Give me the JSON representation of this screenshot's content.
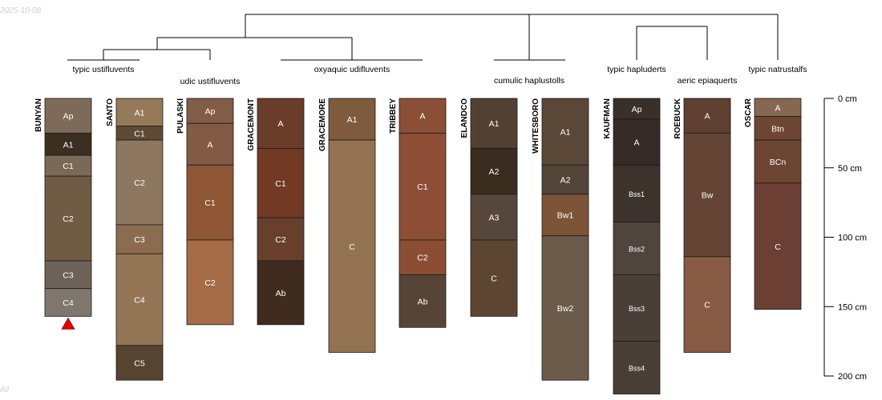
{
  "date_stamp": "2025-10-08",
  "footer_stamp": "All",
  "colors": {
    "line": "#000000",
    "horizon_text": "#ffffff",
    "marker": "#e00000"
  },
  "depth_axis": {
    "max_cm": 200,
    "ticks": [
      {
        "depth": 0,
        "label": "0 cm"
      },
      {
        "depth": 50,
        "label": "50 cm"
      },
      {
        "depth": 100,
        "label": "100 cm"
      },
      {
        "depth": 150,
        "label": "150 cm"
      },
      {
        "depth": 200,
        "label": "200 cm"
      }
    ]
  },
  "groups": [
    {
      "label": "typic ustifluvents",
      "members": [
        "BUNYAN",
        "SANTO"
      ]
    },
    {
      "label": "udic ustifluvents",
      "members": [
        "PULASKI"
      ]
    },
    {
      "label": "oxyaquic udifluvents",
      "members": [
        "GRACEMONT",
        "GRACEMORE",
        "TRIBBEY"
      ]
    },
    {
      "label": "cumulic haplustolls",
      "members": [
        "ELANDCO",
        "WHITESBORO"
      ]
    },
    {
      "label": "typic hapluderts",
      "members": [
        "KAUFMAN"
      ]
    },
    {
      "label": "aeric epiaquerts",
      "members": [
        "ROEBUCK"
      ]
    },
    {
      "label": "typic natrustalfs",
      "members": [
        "OSCAR"
      ]
    }
  ],
  "profiles": [
    {
      "name": "BUNYAN",
      "marker": true,
      "horizons": [
        {
          "name": "Ap",
          "top": 0,
          "bottom": 25,
          "color": "#7d6a58"
        },
        {
          "name": "A1",
          "top": 25,
          "bottom": 41,
          "color": "#3d2e22"
        },
        {
          "name": "C1",
          "top": 41,
          "bottom": 56,
          "color": "#7b6957"
        },
        {
          "name": "C2",
          "top": 56,
          "bottom": 117,
          "color": "#705c45"
        },
        {
          "name": "C3",
          "top": 117,
          "bottom": 137,
          "color": "#6c6258"
        },
        {
          "name": "C4",
          "top": 137,
          "bottom": 157,
          "color": "#7f776d"
        }
      ]
    },
    {
      "name": "SANTO",
      "horizons": [
        {
          "name": "A1",
          "top": 0,
          "bottom": 20,
          "color": "#957a59"
        },
        {
          "name": "C1",
          "top": 20,
          "bottom": 30,
          "color": "#5e4a36"
        },
        {
          "name": "C2",
          "top": 30,
          "bottom": 91,
          "color": "#8d7760"
        },
        {
          "name": "C3",
          "top": 91,
          "bottom": 112,
          "color": "#8b6c4f"
        },
        {
          "name": "C4",
          "top": 112,
          "bottom": 178,
          "color": "#947555"
        },
        {
          "name": "C5",
          "top": 178,
          "bottom": 203,
          "color": "#574430"
        }
      ]
    },
    {
      "name": "PULASKI",
      "horizons": [
        {
          "name": "Ap",
          "top": 0,
          "bottom": 18,
          "color": "#825c45"
        },
        {
          "name": "A",
          "top": 18,
          "bottom": 48,
          "color": "#835a44"
        },
        {
          "name": "C1",
          "top": 48,
          "bottom": 102,
          "color": "#8e5634"
        },
        {
          "name": "C2",
          "top": 102,
          "bottom": 163,
          "color": "#a66b47"
        }
      ]
    },
    {
      "name": "GRACEMONT",
      "horizons": [
        {
          "name": "A",
          "top": 0,
          "bottom": 36,
          "color": "#6a3d2a"
        },
        {
          "name": "C1",
          "top": 36,
          "bottom": 86,
          "color": "#723a24"
        },
        {
          "name": "C2",
          "top": 86,
          "bottom": 117,
          "color": "#683f2d"
        },
        {
          "name": "Ab",
          "top": 117,
          "bottom": 163,
          "color": "#3f2c1f"
        }
      ]
    },
    {
      "name": "GRACEMORE",
      "horizons": [
        {
          "name": "A1",
          "top": 0,
          "bottom": 30,
          "color": "#7e5b3d"
        },
        {
          "name": "C",
          "top": 30,
          "bottom": 183,
          "color": "#937252"
        }
      ]
    },
    {
      "name": "TRIBBEY",
      "horizons": [
        {
          "name": "A",
          "top": 0,
          "bottom": 25,
          "color": "#8a4f36"
        },
        {
          "name": "C1",
          "top": 25,
          "bottom": 102,
          "color": "#8c4f36"
        },
        {
          "name": "C2",
          "top": 102,
          "bottom": 127,
          "color": "#8b4e35"
        },
        {
          "name": "Ab",
          "top": 127,
          "bottom": 165,
          "color": "#564537"
        }
      ]
    },
    {
      "name": "ELANDCO",
      "horizons": [
        {
          "name": "A1",
          "top": 0,
          "bottom": 36,
          "color": "#524032"
        },
        {
          "name": "A2",
          "top": 36,
          "bottom": 69,
          "color": "#3b2c20"
        },
        {
          "name": "A3",
          "top": 69,
          "bottom": 102,
          "color": "#56473a"
        },
        {
          "name": "C",
          "top": 102,
          "bottom": 157,
          "color": "#5c4632"
        }
      ]
    },
    {
      "name": "WHITESBORO",
      "horizons": [
        {
          "name": "A1",
          "top": 0,
          "bottom": 48,
          "color": "#5b4738"
        },
        {
          "name": "A2",
          "top": 48,
          "bottom": 69,
          "color": "#524538"
        },
        {
          "name": "Bw1",
          "top": 69,
          "bottom": 99,
          "color": "#7d5437"
        },
        {
          "name": "Bw2",
          "top": 99,
          "bottom": 203,
          "color": "#6c5b4b"
        }
      ]
    },
    {
      "name": "KAUFMAN",
      "horizons": [
        {
          "name": "Ap",
          "top": 0,
          "bottom": 15,
          "color": "#3a302a"
        },
        {
          "name": "A",
          "top": 15,
          "bottom": 48,
          "color": "#352c27"
        },
        {
          "name": "Bss1",
          "top": 48,
          "bottom": 89,
          "color": "#3c332d"
        },
        {
          "name": "Bss2",
          "top": 89,
          "bottom": 127,
          "color": "#4f453e"
        },
        {
          "name": "Bss3",
          "top": 127,
          "bottom": 175,
          "color": "#4a3f38"
        },
        {
          "name": "Bss4",
          "top": 175,
          "bottom": 213,
          "color": "#4a3f38"
        }
      ]
    },
    {
      "name": "ROEBUCK",
      "horizons": [
        {
          "name": "A",
          "top": 0,
          "bottom": 25,
          "color": "#5e3f30"
        },
        {
          "name": "Bw",
          "top": 25,
          "bottom": 114,
          "color": "#644535"
        },
        {
          "name": "C",
          "top": 114,
          "bottom": 183,
          "color": "#875a43"
        }
      ]
    },
    {
      "name": "OSCAR",
      "horizons": [
        {
          "name": "A",
          "top": 0,
          "bottom": 13,
          "color": "#86674f"
        },
        {
          "name": "Btn",
          "top": 13,
          "bottom": 30,
          "color": "#6d4634"
        },
        {
          "name": "BCn",
          "top": 30,
          "bottom": 61,
          "color": "#6d4633"
        },
        {
          "name": "C",
          "top": 61,
          "bottom": 152,
          "color": "#6b3f33"
        }
      ]
    }
  ]
}
